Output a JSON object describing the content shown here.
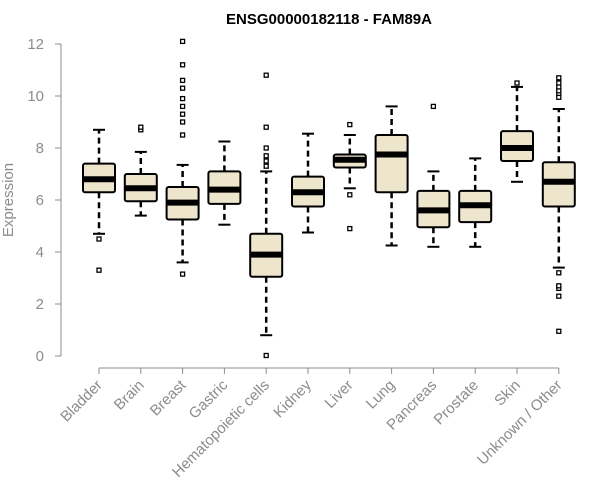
{
  "chart_data": {
    "type": "boxplot",
    "title": "ENSG00000182118 - FAM89A",
    "xlabel": "",
    "ylabel": "Expression",
    "ylim": [
      0,
      12
    ],
    "yticks": [
      0,
      2,
      4,
      6,
      8,
      10,
      12
    ],
    "grid": false,
    "categories": [
      "Bladder",
      "Brain",
      "Breast",
      "Gastric",
      "Hematopoietic cells",
      "Kidney",
      "Liver",
      "Lung",
      "Pancreas",
      "Prostate",
      "Skin",
      "Unknown / Other"
    ],
    "boxes": [
      {
        "category": "Bladder",
        "whisker_low": 4.7,
        "q1": 6.3,
        "median": 6.8,
        "q3": 7.4,
        "whisker_high": 8.7,
        "outliers": [
          4.5,
          3.3
        ]
      },
      {
        "category": "Brain",
        "whisker_low": 5.4,
        "q1": 5.95,
        "median": 6.45,
        "q3": 7.0,
        "whisker_high": 7.85,
        "outliers": [
          8.7,
          8.8
        ]
      },
      {
        "category": "Breast",
        "whisker_low": 3.6,
        "q1": 5.25,
        "median": 5.9,
        "q3": 6.5,
        "whisker_high": 7.35,
        "outliers": [
          3.15,
          8.5,
          9.0,
          9.3,
          9.6,
          9.9,
          10.3,
          10.6,
          11.2,
          12.1
        ]
      },
      {
        "category": "Gastric",
        "whisker_low": 5.05,
        "q1": 5.85,
        "median": 6.4,
        "q3": 7.1,
        "whisker_high": 8.25,
        "outliers": []
      },
      {
        "category": "Hematopoietic cells",
        "whisker_low": 0.8,
        "q1": 3.05,
        "median": 3.9,
        "q3": 4.7,
        "whisker_high": 7.1,
        "outliers": [
          0.02,
          7.3,
          7.5,
          7.7,
          8.0,
          8.8,
          10.8
        ]
      },
      {
        "category": "Kidney",
        "whisker_low": 4.75,
        "q1": 5.75,
        "median": 6.3,
        "q3": 6.9,
        "whisker_high": 8.55,
        "outliers": []
      },
      {
        "category": "Liver",
        "whisker_low": 6.45,
        "q1": 7.25,
        "median": 7.55,
        "q3": 7.75,
        "whisker_high": 8.5,
        "outliers": [
          4.9,
          6.2,
          8.9
        ]
      },
      {
        "category": "Lung",
        "whisker_low": 4.25,
        "q1": 6.3,
        "median": 7.75,
        "q3": 8.5,
        "whisker_high": 9.6,
        "outliers": []
      },
      {
        "category": "Pancreas",
        "whisker_low": 4.2,
        "q1": 4.95,
        "median": 5.6,
        "q3": 6.35,
        "whisker_high": 7.1,
        "outliers": [
          9.6
        ]
      },
      {
        "category": "Prostate",
        "whisker_low": 4.2,
        "q1": 5.15,
        "median": 5.8,
        "q3": 6.35,
        "whisker_high": 7.6,
        "outliers": []
      },
      {
        "category": "Skin",
        "whisker_low": 6.7,
        "q1": 7.5,
        "median": 8.0,
        "q3": 8.65,
        "whisker_high": 10.35,
        "outliers": [
          10.5
        ]
      },
      {
        "category": "Unknown / Other",
        "whisker_low": 3.4,
        "q1": 5.75,
        "median": 6.7,
        "q3": 7.45,
        "whisker_high": 9.5,
        "outliers": [
          0.95,
          2.3,
          2.6,
          2.7,
          3.2,
          9.95,
          10.1,
          10.2,
          10.35,
          10.5,
          10.7
        ]
      }
    ]
  }
}
